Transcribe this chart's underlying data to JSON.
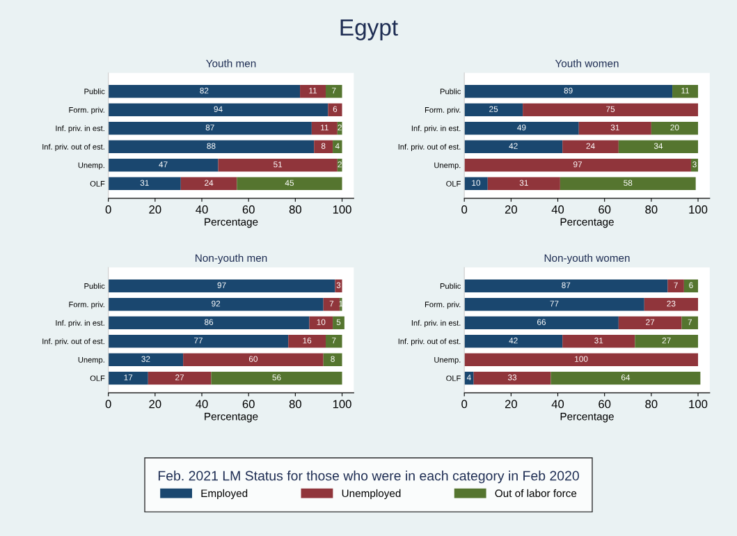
{
  "chart_data": [
    {
      "type": "bar",
      "orientation": "horizontal",
      "stacked": true,
      "data_labels": true,
      "title": "Youth men",
      "xlabel": "Percentage",
      "annotations": [
        "Egypt"
      ],
      "legend": "bottom",
      "legend_title": "Feb. 2021 LM Status for those who were in each category in Feb 2020",
      "xlim": [
        0,
        105
      ],
      "xticks": [
        0,
        20,
        40,
        60,
        80,
        100
      ],
      "categories": [
        "Public",
        "Form. priv.",
        "Inf. priv. in est.",
        "Inf. priv. out of est.",
        "Unemp.",
        "OLF"
      ],
      "series": [
        {
          "name": "Employed",
          "color": "#1a476f",
          "values": [
            82,
            94,
            87,
            88,
            47,
            31
          ]
        },
        {
          "name": "Unemployed",
          "color": "#90353b",
          "values": [
            11,
            6,
            11,
            8,
            51,
            24
          ]
        },
        {
          "name": "Out of labor force",
          "color": "#55752f",
          "values": [
            7,
            null,
            2,
            4,
            2,
            45
          ]
        }
      ]
    },
    {
      "type": "bar",
      "orientation": "horizontal",
      "stacked": true,
      "data_labels": true,
      "title": "Youth women",
      "xlabel": "Percentage",
      "xlim": [
        0,
        105
      ],
      "xticks": [
        0,
        20,
        40,
        60,
        80,
        100
      ],
      "categories": [
        "Public",
        "Form. priv.",
        "Inf. priv. in est.",
        "Inf. priv. out of est.",
        "Unemp.",
        "OLF"
      ],
      "series": [
        {
          "color": "#1a476f",
          "values": [
            89,
            25,
            49,
            42,
            null,
            10
          ]
        },
        {
          "color": "#90353b",
          "values": [
            null,
            75,
            31,
            24,
            97,
            31
          ]
        },
        {
          "color": "#55752f",
          "values": [
            11,
            null,
            20,
            34,
            3,
            58
          ]
        }
      ]
    },
    {
      "type": "bar",
      "orientation": "horizontal",
      "stacked": true,
      "data_labels": true,
      "title": "Non-youth men",
      "xlabel": "Percentage",
      "xlim": [
        0,
        105
      ],
      "xticks": [
        0,
        20,
        40,
        60,
        80,
        100
      ],
      "categories": [
        "Public",
        "Form. priv.",
        "Inf. priv. in est.",
        "Inf. priv. out of est.",
        "Unemp.",
        "OLF"
      ],
      "series": [
        {
          "color": "#1a476f",
          "values": [
            97,
            92,
            86,
            77,
            32,
            17
          ]
        },
        {
          "color": "#90353b",
          "values": [
            3,
            7,
            10,
            16,
            60,
            27
          ]
        },
        {
          "color": "#55752f",
          "values": [
            null,
            1,
            5,
            7,
            8,
            56
          ]
        }
      ]
    },
    {
      "type": "bar",
      "orientation": "horizontal",
      "stacked": true,
      "data_labels": true,
      "title": "Non-youth women",
      "xlabel": "Percentage",
      "xlim": [
        0,
        105
      ],
      "xticks": [
        0,
        20,
        40,
        60,
        80,
        100
      ],
      "categories": [
        "Public",
        "Form. priv.",
        "Inf. priv. in est.",
        "Inf. priv. out of est.",
        "Unemp.",
        "OLF"
      ],
      "series": [
        {
          "color": "#1a476f",
          "values": [
            87,
            77,
            66,
            42,
            null,
            4
          ]
        },
        {
          "color": "#90353b",
          "values": [
            7,
            23,
            27,
            31,
            100,
            33
          ]
        },
        {
          "color": "#55752f",
          "values": [
            6,
            null,
            7,
            27,
            null,
            64
          ]
        }
      ]
    }
  ]
}
